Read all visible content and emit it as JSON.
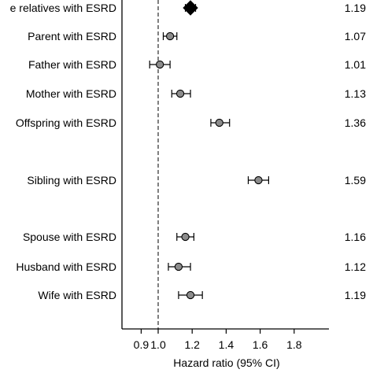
{
  "chart_data": {
    "type": "forest",
    "title": "",
    "xlabel": "Hazard ratio (95% CI)",
    "xlim": [
      0.85,
      1.82
    ],
    "xticks": [
      "0.9",
      "1.0",
      "1.2",
      "1.4",
      "1.6",
      "1.8"
    ],
    "reference_line": 1.0,
    "rows": [
      {
        "label": "e relatives with ESRD",
        "hr": 1.19,
        "lower": 1.16,
        "upper": 1.22,
        "hr_text": "1.19",
        "marker": "diamond"
      },
      {
        "label": "Parent with ESRD",
        "hr": 1.07,
        "lower": 1.03,
        "upper": 1.11,
        "hr_text": "1.07",
        "marker": "circle"
      },
      {
        "label": "Father with ESRD",
        "hr": 1.01,
        "lower": 0.95,
        "upper": 1.07,
        "hr_text": "1.01",
        "marker": "circle"
      },
      {
        "label": "Mother with ESRD",
        "hr": 1.13,
        "lower": 1.08,
        "upper": 1.19,
        "hr_text": "1.13",
        "marker": "circle"
      },
      {
        "label": "Offspring with ESRD",
        "hr": 1.36,
        "lower": 1.31,
        "upper": 1.42,
        "hr_text": "1.36",
        "marker": "circle"
      },
      {
        "label": "Sibling with ESRD",
        "hr": 1.59,
        "lower": 1.53,
        "upper": 1.65,
        "hr_text": "1.59",
        "marker": "circle"
      },
      {
        "label": "Spouse with ESRD",
        "hr": 1.16,
        "lower": 1.11,
        "upper": 1.21,
        "hr_text": "1.16",
        "marker": "circle"
      },
      {
        "label": "Husband with ESRD",
        "hr": 1.12,
        "lower": 1.06,
        "upper": 1.19,
        "hr_text": "1.12",
        "marker": "circle"
      },
      {
        "label": "Wife with ESRD",
        "hr": 1.19,
        "lower": 1.12,
        "upper": 1.26,
        "hr_text": "1.19",
        "marker": "circle"
      }
    ],
    "colors": {
      "marker_fill": "#8c8c8c",
      "diamond_fill": "#000000",
      "line": "#000000"
    }
  }
}
